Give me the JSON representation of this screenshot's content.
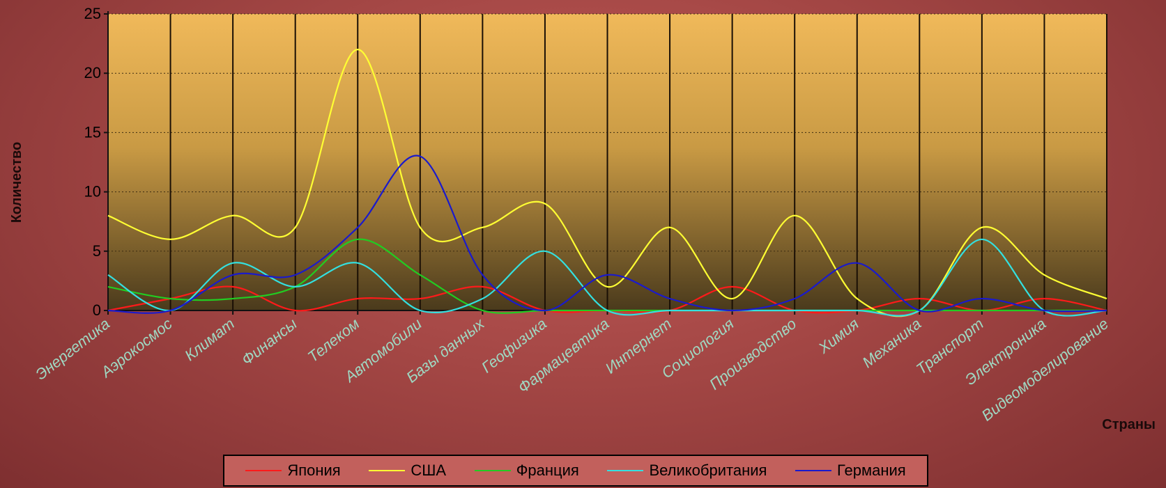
{
  "chart_data": {
    "type": "line",
    "xlabel": "Страны",
    "ylabel": "Количество",
    "ylim": [
      0,
      25
    ],
    "yticks": [
      0,
      5,
      10,
      15,
      20,
      25
    ],
    "grid": true,
    "legend_position": "bottom",
    "categories": [
      "Энергетика",
      "Аэрокосмос",
      "Климат",
      "Финансы",
      "Телеком",
      "Автомобили",
      "Базы данных",
      "Геофизика",
      "Фармацевтика",
      "Интернет",
      "Социология",
      "Производство",
      "Химия",
      "Механика",
      "Транспорт",
      "Электроника",
      "Видеомоделирование"
    ],
    "series": [
      {
        "name": "Япония",
        "color": "#ff1a1a",
        "values": [
          0,
          1,
          2,
          0,
          1,
          1,
          2,
          0,
          0,
          0,
          2,
          0,
          0,
          1,
          0,
          1,
          0
        ]
      },
      {
        "name": "США",
        "color": "#ffff33",
        "values": [
          8,
          6,
          8,
          7,
          22,
          7,
          7,
          9,
          2,
          7,
          1,
          8,
          1,
          0,
          7,
          3,
          1
        ]
      },
      {
        "name": "Франция",
        "color": "#22cc22",
        "values": [
          2,
          1,
          1,
          2,
          6,
          3,
          0,
          0,
          0,
          0,
          0,
          0,
          0,
          0,
          0,
          0,
          0
        ]
      },
      {
        "name": "Великобритания",
        "color": "#33e0e0",
        "values": [
          3,
          0,
          4,
          2,
          4,
          0,
          1,
          5,
          0,
          0,
          0,
          0,
          0,
          0,
          6,
          0,
          0
        ]
      },
      {
        "name": "Германия",
        "color": "#1a1acc",
        "values": [
          0,
          0,
          3,
          3,
          7,
          13,
          3,
          0,
          3,
          1,
          0,
          1,
          4,
          0,
          1,
          0,
          0
        ]
      }
    ]
  }
}
